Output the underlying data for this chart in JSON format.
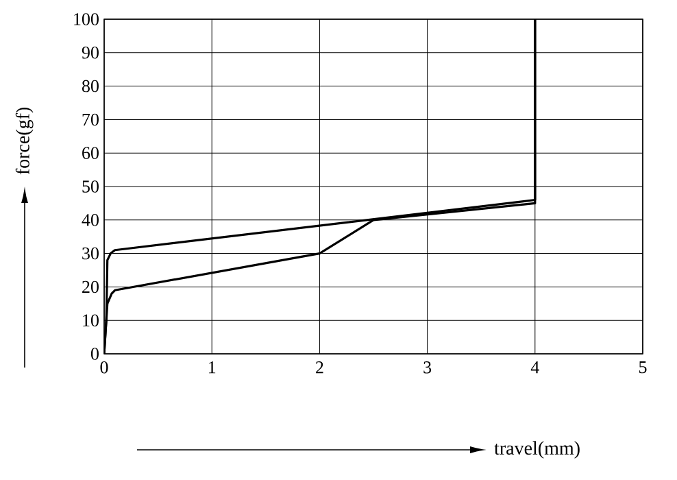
{
  "chart_data": {
    "type": "line",
    "xlabel": "travel(mm)",
    "ylabel": "force(gf)",
    "xlim": [
      0,
      5
    ],
    "ylim": [
      0,
      100
    ],
    "xticks": [
      0,
      1,
      2,
      3,
      4,
      5
    ],
    "yticks": [
      0,
      10,
      20,
      30,
      40,
      50,
      60,
      70,
      80,
      90,
      100
    ],
    "grid": true,
    "series": [
      {
        "color": "#000000",
        "x": [
          0,
          0.02,
          0.03,
          0.06,
          0.1,
          4,
          4
        ],
        "values": [
          0,
          10,
          28,
          30,
          31,
          46,
          100
        ]
      },
      {
        "color": "#000000",
        "x": [
          0,
          0.03,
          0.07,
          0.1,
          2,
          2.5,
          4,
          4
        ],
        "values": [
          0,
          15,
          18,
          19,
          30,
          40,
          45,
          100
        ]
      }
    ]
  }
}
